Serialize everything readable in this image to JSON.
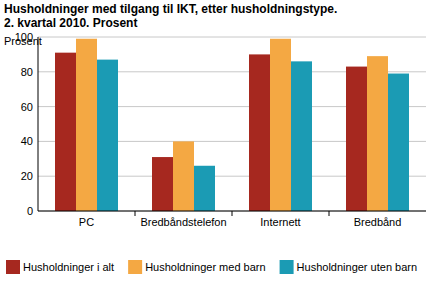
{
  "chart_data": {
    "type": "bar",
    "title": "Husholdninger med tilgang til IKT, etter husholdningstype.",
    "subtitle": "2. kvartal 2010. Prosent",
    "y_label": "Prosent",
    "categories": [
      "PC",
      "Bredbåndstelefon",
      "Internett",
      "Bredbånd"
    ],
    "series": [
      {
        "name": "Husholdninger i alt",
        "color": "#a6281f",
        "values": [
          91,
          31,
          90,
          83
        ]
      },
      {
        "name": "Husholdninger med barn",
        "color": "#f4a843",
        "values": [
          99,
          40,
          99,
          89
        ]
      },
      {
        "name": "Husholdninger uten barn",
        "color": "#1b9bb4",
        "values": [
          87,
          26,
          86,
          79
        ]
      }
    ],
    "ylim": [
      0,
      100
    ],
    "yticks": [
      0,
      20,
      40,
      60,
      80,
      100
    ],
    "grid": true,
    "legend": "bottom"
  }
}
